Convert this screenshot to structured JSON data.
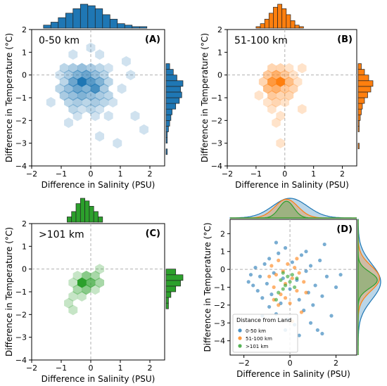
{
  "colors": {
    "blue": "#1f77b4",
    "orange": "#ff7f0e",
    "green": "#2ca02c"
  },
  "chart_data": [
    {
      "type": "hexbin",
      "panel": "(A)",
      "inset_label": "0-50 km",
      "xlabel": "Difference in Salinity (PSU)",
      "ylabel": "Difference in Temperature (°C)",
      "xlim": [
        -2,
        2.5
      ],
      "ylim": [
        -4,
        2
      ],
      "xticks": [
        -2,
        -1,
        0,
        1,
        2
      ],
      "yticks": [
        -4,
        -3,
        -2,
        -1,
        0,
        1,
        2
      ],
      "color": "#1f77b4",
      "hexbins": [
        {
          "x": -0.6,
          "y": 0.3,
          "n": 3
        },
        {
          "x": -0.3,
          "y": 0.3,
          "n": 4
        },
        {
          "x": 0.0,
          "y": 0.3,
          "n": 3
        },
        {
          "x": 0.3,
          "y": 0.3,
          "n": 2
        },
        {
          "x": -0.9,
          "y": 0.3,
          "n": 2
        },
        {
          "x": 0.6,
          "y": 0.3,
          "n": 1
        },
        {
          "x": -0.75,
          "y": 0.0,
          "n": 3
        },
        {
          "x": -0.45,
          "y": 0.0,
          "n": 5
        },
        {
          "x": -0.15,
          "y": 0.0,
          "n": 6
        },
        {
          "x": 0.15,
          "y": 0.0,
          "n": 4
        },
        {
          "x": 0.45,
          "y": 0.0,
          "n": 2
        },
        {
          "x": -1.05,
          "y": 0.0,
          "n": 1
        },
        {
          "x": -0.9,
          "y": -0.3,
          "n": 2
        },
        {
          "x": -0.6,
          "y": -0.3,
          "n": 6
        },
        {
          "x": -0.3,
          "y": -0.3,
          "n": 10
        },
        {
          "x": 0.0,
          "y": -0.3,
          "n": 7
        },
        {
          "x": 0.3,
          "y": -0.3,
          "n": 5
        },
        {
          "x": 0.6,
          "y": -0.3,
          "n": 2
        },
        {
          "x": -0.75,
          "y": -0.6,
          "n": 4
        },
        {
          "x": -0.45,
          "y": -0.6,
          "n": 6
        },
        {
          "x": -0.15,
          "y": -0.6,
          "n": 5
        },
        {
          "x": 0.15,
          "y": -0.6,
          "n": 8
        },
        {
          "x": 0.45,
          "y": -0.6,
          "n": 3
        },
        {
          "x": -1.05,
          "y": -0.6,
          "n": 2
        },
        {
          "x": -0.9,
          "y": -0.9,
          "n": 3
        },
        {
          "x": -0.6,
          "y": -0.9,
          "n": 4
        },
        {
          "x": -0.3,
          "y": -0.9,
          "n": 5
        },
        {
          "x": 0.0,
          "y": -0.9,
          "n": 4
        },
        {
          "x": 0.3,
          "y": -0.9,
          "n": 3
        },
        {
          "x": 0.6,
          "y": -0.9,
          "n": 2
        },
        {
          "x": -0.75,
          "y": -1.2,
          "n": 2
        },
        {
          "x": -0.45,
          "y": -1.2,
          "n": 3
        },
        {
          "x": -0.15,
          "y": -1.2,
          "n": 2
        },
        {
          "x": 0.15,
          "y": -1.2,
          "n": 3
        },
        {
          "x": 0.45,
          "y": -1.2,
          "n": 2
        },
        {
          "x": 0.75,
          "y": -1.2,
          "n": 1
        },
        {
          "x": -0.6,
          "y": -1.5,
          "n": 2
        },
        {
          "x": -0.3,
          "y": -1.5,
          "n": 1
        },
        {
          "x": 0.0,
          "y": -1.5,
          "n": 2
        },
        {
          "x": 0.3,
          "y": -1.5,
          "n": 1
        },
        {
          "x": -0.45,
          "y": -1.8,
          "n": 1
        },
        {
          "x": 0.15,
          "y": -1.8,
          "n": 1
        },
        {
          "x": 0.6,
          "y": -1.8,
          "n": 1
        },
        {
          "x": -0.75,
          "y": -2.1,
          "n": 1
        },
        {
          "x": 1.05,
          "y": -0.6,
          "n": 1
        },
        {
          "x": 1.35,
          "y": 0.0,
          "n": 1
        },
        {
          "x": 1.8,
          "y": -2.4,
          "n": 1
        },
        {
          "x": 1.5,
          "y": -1.8,
          "n": 1
        },
        {
          "x": 0.9,
          "y": -3.0,
          "n": 1
        },
        {
          "x": 0.3,
          "y": -2.7,
          "n": 1
        },
        {
          "x": -1.35,
          "y": -1.2,
          "n": 1
        },
        {
          "x": 0.0,
          "y": 1.2,
          "n": 1
        },
        {
          "x": -0.6,
          "y": 0.9,
          "n": 1
        },
        {
          "x": 0.3,
          "y": 0.9,
          "n": 1
        },
        {
          "x": 1.2,
          "y": 0.6,
          "n": 1
        }
      ],
      "marginal_x": {
        "edges": [
          -1.6,
          -1.35,
          -1.1,
          -0.85,
          -0.6,
          -0.35,
          -0.1,
          0.15,
          0.4,
          0.65,
          0.9,
          1.15,
          1.4,
          1.65,
          1.9
        ],
        "counts": [
          2,
          4,
          7,
          10,
          13,
          16,
          15,
          13,
          9,
          6,
          3,
          2,
          1,
          1
        ]
      },
      "marginal_y": {
        "edges": [
          -3.5,
          -3.25,
          -3.0,
          -2.75,
          -2.5,
          -2.25,
          -2.0,
          -1.75,
          -1.5,
          -1.25,
          -1.0,
          -0.75,
          -0.5,
          -0.25,
          0.0,
          0.25,
          0.5
        ],
        "counts": [
          1,
          0,
          1,
          1,
          2,
          3,
          4,
          5,
          8,
          11,
          13,
          12,
          14,
          9,
          6,
          3
        ]
      }
    },
    {
      "type": "hexbin",
      "panel": "(B)",
      "inset_label": "51-100 km",
      "xlabel": "Difference in Salinity (PSU)",
      "ylabel": "Difference in Temperature (°C)",
      "xlim": [
        -2,
        2.5
      ],
      "ylim": [
        -4,
        2
      ],
      "xticks": [
        -2,
        -1,
        0,
        1,
        2
      ],
      "yticks": [
        -4,
        -3,
        -2,
        -1,
        0,
        1,
        2
      ],
      "color": "#ff7f0e",
      "hexbins": [
        {
          "x": -0.45,
          "y": 0.3,
          "n": 2
        },
        {
          "x": -0.15,
          "y": 0.3,
          "n": 2
        },
        {
          "x": 0.15,
          "y": 0.3,
          "n": 1
        },
        {
          "x": -0.6,
          "y": 0.0,
          "n": 3
        },
        {
          "x": -0.3,
          "y": 0.0,
          "n": 5
        },
        {
          "x": 0.0,
          "y": 0.0,
          "n": 3
        },
        {
          "x": 0.3,
          "y": 0.0,
          "n": 1
        },
        {
          "x": -0.75,
          "y": -0.3,
          "n": 2
        },
        {
          "x": -0.45,
          "y": -0.3,
          "n": 7
        },
        {
          "x": -0.15,
          "y": -0.3,
          "n": 9
        },
        {
          "x": 0.15,
          "y": -0.3,
          "n": 4
        },
        {
          "x": 0.45,
          "y": -0.3,
          "n": 1
        },
        {
          "x": -0.6,
          "y": -0.6,
          "n": 4
        },
        {
          "x": -0.3,
          "y": -0.6,
          "n": 5
        },
        {
          "x": 0.0,
          "y": -0.6,
          "n": 3
        },
        {
          "x": 0.3,
          "y": -0.6,
          "n": 2
        },
        {
          "x": -0.45,
          "y": -0.9,
          "n": 3
        },
        {
          "x": -0.15,
          "y": -0.9,
          "n": 2
        },
        {
          "x": 0.15,
          "y": -0.9,
          "n": 2
        },
        {
          "x": -0.6,
          "y": -1.2,
          "n": 1
        },
        {
          "x": -0.3,
          "y": -1.2,
          "n": 2
        },
        {
          "x": 0.0,
          "y": -1.2,
          "n": 1
        },
        {
          "x": -0.45,
          "y": -1.5,
          "n": 1
        },
        {
          "x": -0.15,
          "y": -1.8,
          "n": 1
        },
        {
          "x": -0.3,
          "y": -2.1,
          "n": 1
        },
        {
          "x": 0.6,
          "y": -1.5,
          "n": 1
        },
        {
          "x": -0.15,
          "y": -3.0,
          "n": 1
        },
        {
          "x": 0.6,
          "y": 0.3,
          "n": 1
        },
        {
          "x": -0.9,
          "y": -0.9,
          "n": 1
        }
      ],
      "marginal_x": {
        "edges": [
          -1.0,
          -0.85,
          -0.7,
          -0.55,
          -0.4,
          -0.25,
          -0.1,
          0.05,
          0.2,
          0.35,
          0.5,
          0.65
        ],
        "counts": [
          1,
          3,
          6,
          10,
          14,
          16,
          13,
          9,
          5,
          2,
          1
        ]
      },
      "marginal_y": {
        "edges": [
          -3.25,
          -3.0,
          -2.75,
          -2.5,
          -2.25,
          -2.0,
          -1.75,
          -1.5,
          -1.25,
          -1.0,
          -0.75,
          -0.5,
          -0.25,
          0.0,
          0.25,
          0.5
        ],
        "counts": [
          1,
          0,
          0,
          1,
          1,
          2,
          3,
          4,
          6,
          9,
          12,
          14,
          10,
          6,
          3
        ]
      }
    },
    {
      "type": "hexbin",
      "panel": "(C)",
      "inset_label": ">101 km",
      "xlabel": "Difference in Salinity (PSU)",
      "ylabel": "Difference in Temperature (°C)",
      "xlim": [
        -2,
        2.5
      ],
      "ylim": [
        -4,
        2
      ],
      "xticks": [
        -2,
        -1,
        0,
        1,
        2
      ],
      "yticks": [
        -4,
        -3,
        -2,
        -1,
        0,
        1,
        2
      ],
      "color": "#2ca02c",
      "hexbins": [
        {
          "x": -0.15,
          "y": -0.3,
          "n": 3
        },
        {
          "x": 0.15,
          "y": -0.3,
          "n": 2
        },
        {
          "x": -0.45,
          "y": -0.3,
          "n": 1
        },
        {
          "x": -0.3,
          "y": -0.6,
          "n": 6
        },
        {
          "x": 0.0,
          "y": -0.6,
          "n": 4
        },
        {
          "x": 0.3,
          "y": -0.6,
          "n": 2
        },
        {
          "x": -0.6,
          "y": -0.6,
          "n": 1
        },
        {
          "x": -0.45,
          "y": -0.9,
          "n": 2
        },
        {
          "x": -0.15,
          "y": -0.9,
          "n": 3
        },
        {
          "x": 0.15,
          "y": -0.9,
          "n": 1
        },
        {
          "x": -0.6,
          "y": -1.2,
          "n": 1
        },
        {
          "x": -0.3,
          "y": -1.2,
          "n": 1
        },
        {
          "x": -0.75,
          "y": -1.5,
          "n": 1
        },
        {
          "x": -0.6,
          "y": -1.8,
          "n": 1
        },
        {
          "x": 0.3,
          "y": 0.0,
          "n": 1
        }
      ],
      "marginal_x": {
        "edges": [
          -0.8,
          -0.65,
          -0.5,
          -0.35,
          -0.2,
          -0.05,
          0.1,
          0.25,
          0.4
        ],
        "counts": [
          2,
          4,
          7,
          9,
          8,
          6,
          4,
          2
        ]
      },
      "marginal_y": {
        "edges": [
          -1.75,
          -1.5,
          -1.25,
          -1.0,
          -0.75,
          -0.5,
          -0.25,
          0.0
        ],
        "counts": [
          1,
          1,
          2,
          4,
          6,
          7,
          4
        ]
      }
    },
    {
      "type": "scatter",
      "panel": "(D)",
      "xlabel": "Difference in Salinity (PSU)",
      "ylabel": "Difference in Temperature (°C)",
      "xlim": [
        -2.6,
        2.9
      ],
      "ylim": [
        -4.8,
        2.8
      ],
      "xticks": [
        -2,
        0,
        2
      ],
      "yticks": [
        -4,
        -3,
        -2,
        -1,
        0,
        1,
        2
      ],
      "legend": {
        "title": "Distance from Land",
        "placement": "lower-left",
        "entries": [
          "0-50 km",
          "51-100 km",
          ">101 km"
        ]
      },
      "series": [
        {
          "name": "0-50 km",
          "color": "#1f77b4",
          "points": [
            [
              -1.8,
              -0.7
            ],
            [
              -1.7,
              -0.3
            ],
            [
              -1.6,
              -0.9
            ],
            [
              -1.5,
              0.1
            ],
            [
              -1.4,
              -1.2
            ],
            [
              -1.3,
              -0.4
            ],
            [
              -1.2,
              -1.6
            ],
            [
              -1.1,
              0.3
            ],
            [
              -1.0,
              -0.8
            ],
            [
              -0.9,
              -2.1
            ],
            [
              -0.9,
              0.6
            ],
            [
              -0.8,
              -1.4
            ],
            [
              -0.7,
              -0.2
            ],
            [
              -0.6,
              -2.5
            ],
            [
              -0.5,
              0.9
            ],
            [
              -0.4,
              -1.9
            ],
            [
              -0.3,
              -0.5
            ],
            [
              -0.2,
              1.2
            ],
            [
              -0.1,
              -2.8
            ],
            [
              0.0,
              -1.1
            ],
            [
              0.1,
              0.4
            ],
            [
              0.2,
              -3.1
            ],
            [
              0.3,
              -0.6
            ],
            [
              0.4,
              -1.7
            ],
            [
              0.5,
              0.8
            ],
            [
              0.6,
              -2.3
            ],
            [
              0.7,
              -0.1
            ],
            [
              0.8,
              -1.3
            ],
            [
              0.9,
              0.2
            ],
            [
              1.0,
              -2.0
            ],
            [
              1.1,
              -0.9
            ],
            [
              1.2,
              -3.4
            ],
            [
              1.3,
              0.5
            ],
            [
              1.4,
              -1.5
            ],
            [
              1.6,
              -0.4
            ],
            [
              1.8,
              -2.6
            ],
            [
              2.0,
              -1.0
            ],
            [
              2.2,
              -0.3
            ],
            [
              1.5,
              1.4
            ],
            [
              -0.6,
              1.5
            ],
            [
              0.4,
              -3.7
            ],
            [
              1.4,
              -3.6
            ],
            [
              -1.2,
              -2.6
            ],
            [
              0.9,
              -3.0
            ],
            [
              -0.2,
              -3.4
            ],
            [
              0.7,
              1.0
            ]
          ]
        },
        {
          "name": "51-100 km",
          "color": "#ff7f0e",
          "points": [
            [
              -0.9,
              -0.4
            ],
            [
              -0.8,
              0.2
            ],
            [
              -0.7,
              -1.0
            ],
            [
              -0.6,
              -0.3
            ],
            [
              -0.5,
              0.5
            ],
            [
              -0.4,
              -1.4
            ],
            [
              -0.3,
              -0.1
            ],
            [
              -0.2,
              -0.8
            ],
            [
              -0.1,
              0.3
            ],
            [
              0.0,
              -1.9
            ],
            [
              0.1,
              -0.5
            ],
            [
              0.2,
              0.1
            ],
            [
              0.3,
              -1.2
            ],
            [
              0.4,
              -0.2
            ],
            [
              0.5,
              -2.4
            ],
            [
              0.6,
              -0.7
            ],
            [
              -0.5,
              -2.0
            ],
            [
              -0.2,
              -1.6
            ],
            [
              0.1,
              -2.9
            ],
            [
              0.3,
              0.6
            ],
            [
              -0.7,
              -1.7
            ],
            [
              0.7,
              -1.3
            ]
          ]
        },
        {
          "name": ">101 km",
          "color": "#2ca02c",
          "points": [
            [
              -0.4,
              -0.6
            ],
            [
              -0.3,
              -0.2
            ],
            [
              -0.2,
              -0.9
            ],
            [
              -0.1,
              -0.4
            ],
            [
              0.0,
              -0.7
            ],
            [
              0.1,
              -0.3
            ],
            [
              0.2,
              -1.0
            ],
            [
              -0.5,
              -1.3
            ],
            [
              -0.6,
              -1.7
            ],
            [
              0.3,
              -0.5
            ],
            [
              -0.3,
              -1.1
            ]
          ]
        }
      ],
      "marginal_x_kde": [
        {
          "name": "0-50 km",
          "color": "#1f77b4",
          "mean": 0.0,
          "sd": 0.75,
          "weight": 1.0
        },
        {
          "name": "51-100 km",
          "color": "#ff7f0e",
          "mean": -0.15,
          "sd": 0.5,
          "weight": 0.95
        },
        {
          "name": ">101 km",
          "color": "#2ca02c",
          "mean": -0.15,
          "sd": 0.32,
          "weight": 0.85
        }
      ],
      "marginal_y_kde": [
        {
          "name": "0-50 km",
          "color": "#1f77b4",
          "mean": -0.7,
          "sd": 1.0,
          "weight": 1.0
        },
        {
          "name": "51-100 km",
          "color": "#ff7f0e",
          "mean": -0.5,
          "sd": 0.7,
          "weight": 0.95
        },
        {
          "name": ">101 km",
          "color": "#2ca02c",
          "mean": -0.6,
          "sd": 0.45,
          "weight": 0.85
        }
      ]
    }
  ]
}
